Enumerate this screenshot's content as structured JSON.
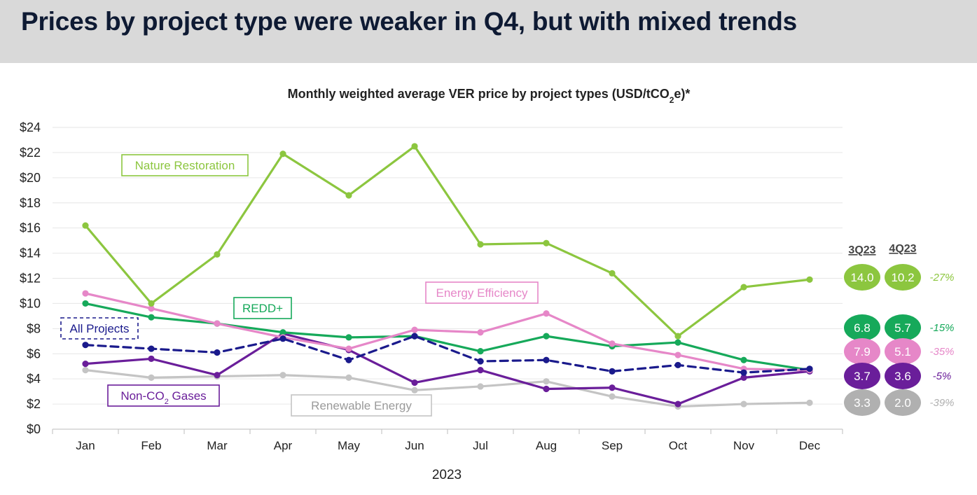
{
  "slide": {
    "title": "Prices by project type were weaker in Q4, but with mixed trends"
  },
  "chart_data": {
    "type": "line",
    "title": "Monthly weighted average VER price by project types (USD/tCO",
    "title_sub": "2",
    "title_end": "e)*",
    "xlabel": "2023",
    "categories": [
      "Jan",
      "Feb",
      "Mar",
      "Apr",
      "May",
      "Jun",
      "Jul",
      "Aug",
      "Sep",
      "Oct",
      "Nov",
      "Dec"
    ],
    "ylim": [
      0,
      24
    ],
    "y_ticks": [
      "$0",
      "$2",
      "$4",
      "$6",
      "$8",
      "$10",
      "$12",
      "$14",
      "$16",
      "$18",
      "$20",
      "$22",
      "$24"
    ],
    "grid": true,
    "series": [
      {
        "name": "Nature Restoration",
        "color": "#8cc63f",
        "dashed": false,
        "values": [
          16.2,
          10.0,
          13.9,
          21.9,
          18.6,
          22.5,
          14.7,
          14.8,
          12.4,
          7.4,
          11.3,
          11.9
        ]
      },
      {
        "name": "Energy Efficiency",
        "color": "#e687c8",
        "dashed": false,
        "values": [
          10.8,
          9.6,
          8.4,
          7.3,
          6.4,
          7.9,
          7.7,
          9.2,
          6.8,
          5.9,
          4.8,
          4.7
        ]
      },
      {
        "name": "REDD+",
        "color": "#16a95a",
        "dashed": false,
        "values": [
          10.0,
          8.9,
          8.4,
          7.7,
          7.3,
          7.4,
          6.2,
          7.4,
          6.6,
          6.9,
          5.5,
          4.7
        ]
      },
      {
        "name": "All Projects",
        "color": "#1a1a8c",
        "dashed": true,
        "values": [
          6.7,
          6.4,
          6.1,
          7.2,
          5.5,
          7.4,
          5.4,
          5.5,
          4.6,
          5.1,
          4.5,
          4.8
        ]
      },
      {
        "name": "Non-CO",
        "name_sub": "2",
        "name_end": " Gases",
        "color": "#6a1e9a",
        "dashed": false,
        "values": [
          5.2,
          5.6,
          4.3,
          7.6,
          6.3,
          3.7,
          4.7,
          3.2,
          3.3,
          2.0,
          4.1,
          4.6
        ]
      },
      {
        "name": "Renewable Energy",
        "color": "#c4c4c4",
        "dashed": false,
        "values": [
          4.7,
          4.1,
          4.2,
          4.3,
          4.1,
          3.1,
          3.4,
          3.8,
          2.6,
          1.8,
          2.0,
          2.1
        ]
      }
    ],
    "quarterly": {
      "headers": [
        "3Q23",
        "4Q23"
      ],
      "rows": [
        {
          "q3": "14.0",
          "q4": "10.2",
          "change": "-27%",
          "color": "#8cc63f"
        },
        {
          "q3": "6.8",
          "q4": "5.7",
          "change": "-15%",
          "color": "#16a95a"
        },
        {
          "q3": "7.9",
          "q4": "5.1",
          "change": "-35%",
          "color": "#e687c8"
        },
        {
          "q3": "3.7",
          "q4": "3.6",
          "change": "-5%",
          "color": "#6a1e9a"
        },
        {
          "q3": "3.3",
          "q4": "2.0",
          "change": "-39%",
          "color": "#b0b0b0"
        }
      ]
    }
  }
}
